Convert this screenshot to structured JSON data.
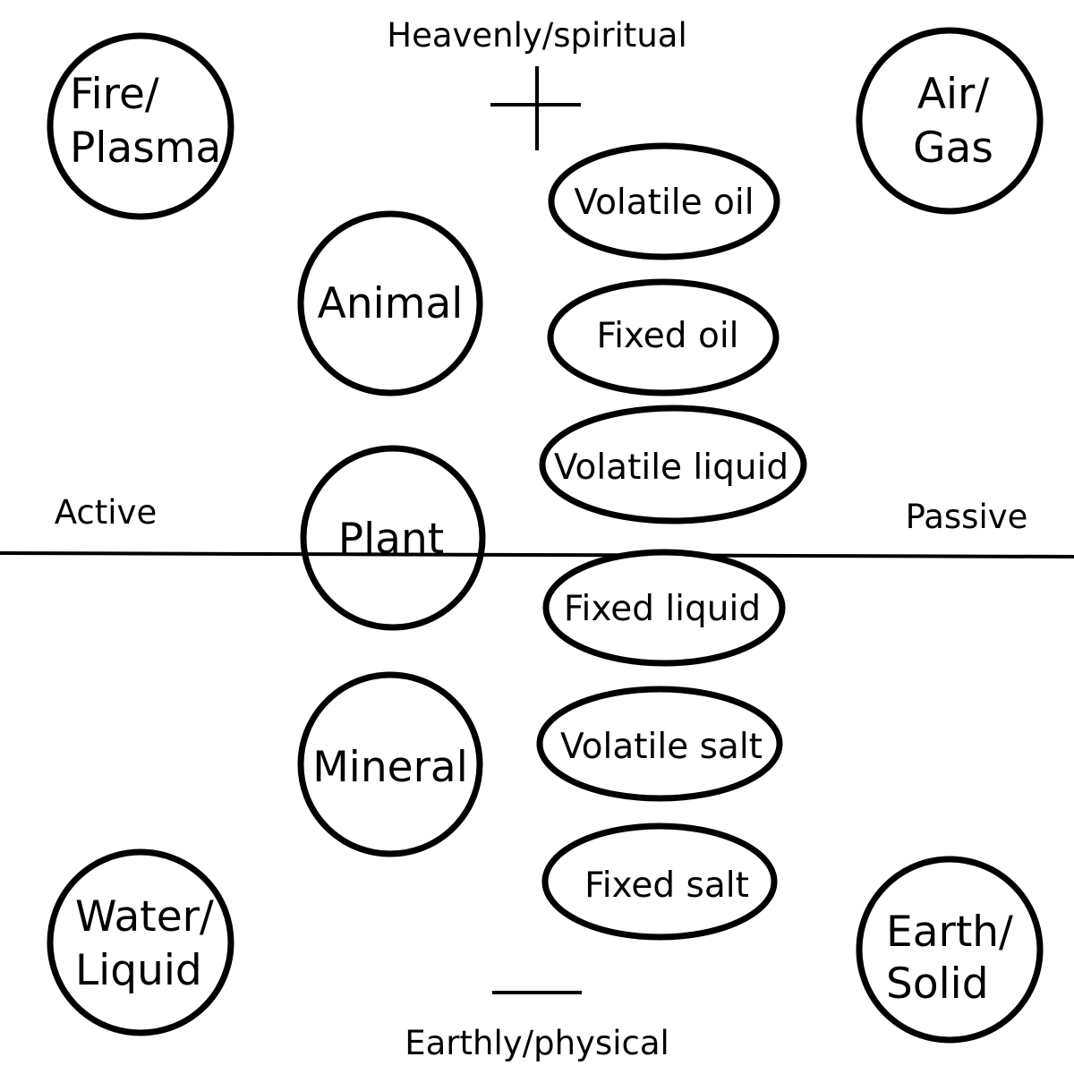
{
  "axes": {
    "top": "Heavenly/spiritual",
    "bottom": "Earthly/physical",
    "left": "Active",
    "right": "Passive"
  },
  "elements": {
    "fire": [
      "Fire/",
      "Plasma"
    ],
    "air": [
      "Air/",
      "Gas"
    ],
    "water": [
      "Water/",
      "Liquid"
    ],
    "earth": [
      "Earth/",
      "Solid"
    ]
  },
  "kingdoms": {
    "animal": "Animal",
    "plant": "Plant",
    "mineral": "Mineral"
  },
  "principles": {
    "volatile_oil": "Volatile oil",
    "fixed_oil": "Fixed oil",
    "volatile_liquid": "Volatile liquid",
    "fixed_liquid": "Fixed liquid",
    "volatile_salt": "Volatile salt",
    "fixed_salt": "Fixed salt"
  },
  "colors": {
    "stroke": "#000000",
    "background": "#ffffff"
  }
}
